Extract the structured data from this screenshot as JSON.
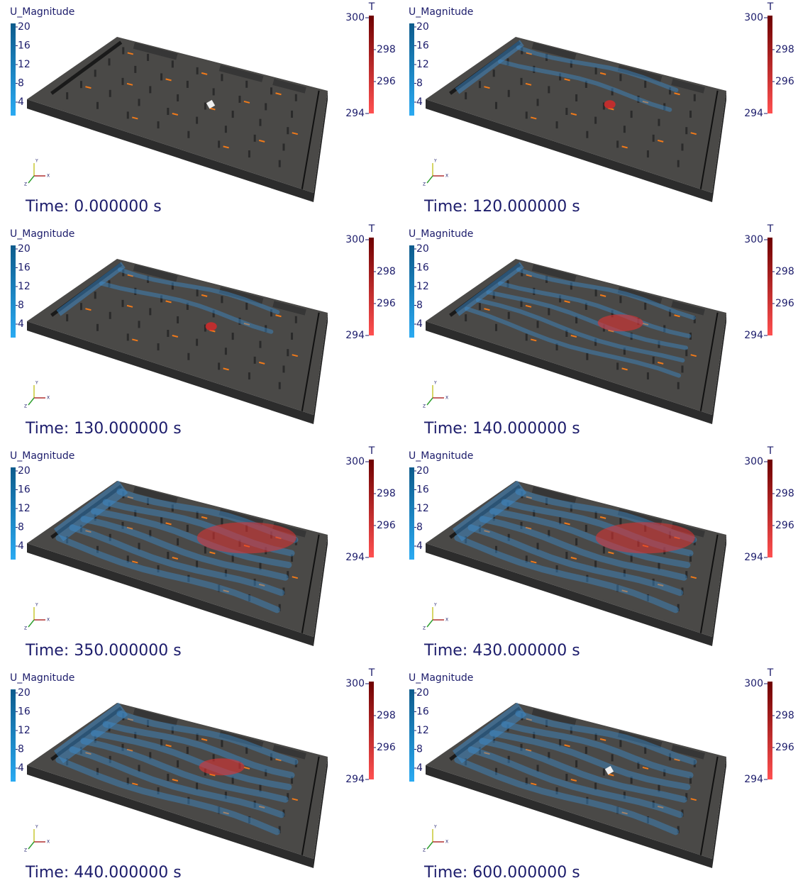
{
  "u_legend": {
    "title": "U_Magnitude",
    "ticks": [
      "20",
      "16",
      "12",
      "8",
      "4"
    ]
  },
  "t_legend": {
    "title": "T",
    "ticks": [
      "300",
      "298",
      "296",
      "294"
    ]
  },
  "axes": {
    "x": "X",
    "y": "Y",
    "z": "Z"
  },
  "panels": [
    {
      "time": "Time: 0.000000 s"
    },
    {
      "time": "Time: 120.000000 s"
    },
    {
      "time": "Time: 130.000000 s"
    },
    {
      "time": "Time: 140.000000 s"
    },
    {
      "time": "Time: 350.000000 s"
    },
    {
      "time": "Time: 430.000000 s"
    },
    {
      "time": "Time: 440.000000 s"
    },
    {
      "time": "Time: 600.000000 s"
    }
  ]
}
